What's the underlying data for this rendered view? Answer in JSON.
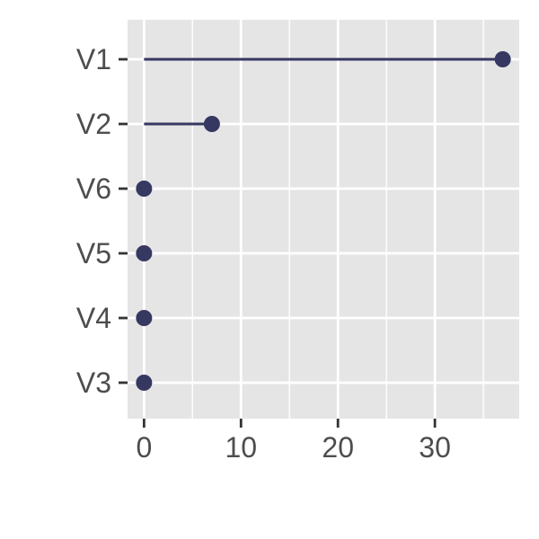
{
  "chart_data": {
    "type": "lollipop",
    "title": "",
    "xlabel": "",
    "ylabel": "",
    "categories": [
      "V1",
      "V2",
      "V6",
      "V5",
      "V4",
      "V3"
    ],
    "values": [
      37,
      7,
      0,
      0,
      0,
      0
    ],
    "xlim": [
      -1.7,
      38.7
    ],
    "xticks": [
      0,
      10,
      20,
      30
    ],
    "x_minor_gridlines": [
      5,
      15,
      25,
      35
    ],
    "grid": true,
    "legend": "none",
    "colors": {
      "panel_background": "#e5e5e5",
      "grid": "#ffffff",
      "marker": "#363862",
      "tick": "#333333",
      "tick_label": "#4d4d4d"
    }
  }
}
